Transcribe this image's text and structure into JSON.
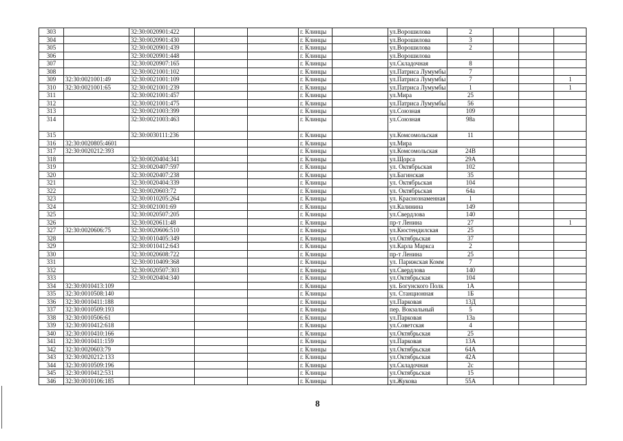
{
  "page_number": "8",
  "rows": [
    {
      "num": "303",
      "cad1": "",
      "cad2": "32:30:0020901:422",
      "city": "г. Клинцы",
      "street": "ул.Ворошилова",
      "house": "2",
      "mark": ""
    },
    {
      "num": "304",
      "cad1": "",
      "cad2": "32:30:0020901:430",
      "city": "г. Клинцы",
      "street": "ул.Ворошилова",
      "house": "3",
      "mark": ""
    },
    {
      "num": "305",
      "cad1": "",
      "cad2": "32:30:0020901:439",
      "city": "г. Клинцы",
      "street": "ул.Ворошилова",
      "house": "2",
      "mark": ""
    },
    {
      "num": "306",
      "cad1": "",
      "cad2": "32:30:0020901:448",
      "city": "г. Клинцы",
      "street": "ул.Ворошилова",
      "house": "",
      "mark": ""
    },
    {
      "num": "307",
      "cad1": "",
      "cad2": "32:30:0020907:165",
      "city": "г. Клинцы",
      "street": "ул.Складочная",
      "house": "8",
      "mark": ""
    },
    {
      "num": "308",
      "cad1": "",
      "cad2": "32:30:0021001:102",
      "city": "г. Клинцы",
      "street": "ул.Патриса Лумумбы",
      "house": "7",
      "mark": ""
    },
    {
      "num": "309",
      "cad1": "32:30:0021001:49",
      "cad2": "32:30:0021001:109",
      "city": "г. Клинцы",
      "street": "ул.Патриса Лумумбы",
      "house": "7",
      "mark": "1"
    },
    {
      "num": "310",
      "cad1": "32:30:0021001:65",
      "cad2": "32:30:0021001:239",
      "city": "г. Клинцы",
      "street": "ул.Патриса Лумумбы",
      "house": "1",
      "mark": "1"
    },
    {
      "num": "311",
      "cad1": "",
      "cad2": "32:30:0021001:457",
      "city": "г. Клинцы",
      "street": "ул.Мира",
      "house": "25",
      "mark": ""
    },
    {
      "num": "312",
      "cad1": "",
      "cad2": "32:30:0021001:475",
      "city": "г. Клинцы",
      "street": "ул.Патриса Лумумбы",
      "house": "56",
      "mark": ""
    },
    {
      "num": "313",
      "cad1": "",
      "cad2": "32:30:0021003:399",
      "city": "г. Клинцы",
      "street": "ул.Союзная",
      "house": "109",
      "mark": ""
    },
    {
      "num": "314",
      "cad1": "",
      "cad2": "32:30:0021003:463",
      "city": "г. Клинцы",
      "street": "ул.Союзная",
      "house": "98а",
      "mark": "",
      "tall": true
    },
    {
      "num": "315",
      "cad1": "",
      "cad2": "32:30:0030111:236",
      "city": "г. Клинцы",
      "street": "ул.Комсомольская",
      "house": "11",
      "mark": ""
    },
    {
      "num": "316",
      "cad1": "32:30:0020805:4601",
      "cad2": "",
      "city": "г. Клинцы",
      "street": "ул.Мира",
      "house": "",
      "mark": ""
    },
    {
      "num": "317",
      "cad1": "32:30:0020212:393",
      "cad2": "",
      "city": "г. Клинцы",
      "street": "ул.Комсомольская",
      "house": "24В",
      "mark": ""
    },
    {
      "num": "318",
      "cad1": "",
      "cad2": "32:30:0020404:341",
      "city": "г. Клинцы",
      "street": "ул.Щорса",
      "house": "29А",
      "mark": ""
    },
    {
      "num": "319",
      "cad1": "",
      "cad2": "32:30:0020407:597",
      "city": "г. Клинцы",
      "street": "ул. Октябрьская",
      "house": "102",
      "mark": ""
    },
    {
      "num": "320",
      "cad1": "",
      "cad2": "32:30:0020407:238",
      "city": "г. Клинцы",
      "street": "ул.Багинская",
      "house": "35",
      "mark": ""
    },
    {
      "num": "321",
      "cad1": "",
      "cad2": "32:30:0020404:339",
      "city": "г. Клинцы",
      "street": "ул. Октябрьская",
      "house": "104",
      "mark": ""
    },
    {
      "num": "322",
      "cad1": "",
      "cad2": "32:30:0020603:72",
      "city": "г. Клинцы",
      "street": "ул. Октябрьская",
      "house": "64а",
      "mark": ""
    },
    {
      "num": "323",
      "cad1": "",
      "cad2": "32:30:0010205:264",
      "city": "г. Клинцы",
      "street": "ул. Краснознаменная",
      "house": "1",
      "mark": ""
    },
    {
      "num": "324",
      "cad1": "",
      "cad2": "32:30:0021001:69",
      "city": "г. Клинцы",
      "street": "ул.Калинина",
      "house": "149",
      "mark": ""
    },
    {
      "num": "325",
      "cad1": "",
      "cad2": "32:30:0020507:205",
      "city": "г. Клинцы",
      "street": "ул.Свердлова",
      "house": "140",
      "mark": ""
    },
    {
      "num": "326",
      "cad1": "",
      "cad2": "32:30:0020611:48",
      "city": "г. Клинцы",
      "street": "пр-т Ленина",
      "house": "27",
      "mark": "1"
    },
    {
      "num": "327",
      "cad1": "32:30:0020606:75",
      "cad2": "32:30:0020606:510",
      "city": "г. Клинцы",
      "street": "ул.Кюстендилская",
      "house": "25",
      "mark": ""
    },
    {
      "num": "328",
      "cad1": "",
      "cad2": "32:30:0010405:349",
      "city": "г. Клинцы",
      "street": "ул.Октябрьская",
      "house": "37",
      "mark": ""
    },
    {
      "num": "329",
      "cad1": "",
      "cad2": "32:30:0010412:643",
      "city": "г. Клинцы",
      "street": "ул.Карла Маркса",
      "house": "2",
      "mark": ""
    },
    {
      "num": "330",
      "cad1": "",
      "cad2": "32:30:0020608:722",
      "city": "г. Клинцы",
      "street": "пр-т Ленина",
      "house": "25",
      "mark": ""
    },
    {
      "num": "331",
      "cad1": "",
      "cad2": "32:30:0010409:368",
      "city": "г. Клинцы",
      "street": "ул. Парижская Комм",
      "house": "7",
      "mark": ""
    },
    {
      "num": "332",
      "cad1": "",
      "cad2": "32:30:0020507:303",
      "city": "г. Клинцы",
      "street": "ул.Свердлова",
      "house": "140",
      "mark": ""
    },
    {
      "num": "333",
      "cad1": "",
      "cad2": "32:30:0020404:340",
      "city": "г. Клинцы",
      "street": "ул.Октябрьская",
      "house": "104",
      "mark": ""
    },
    {
      "num": "334",
      "cad1": "32:30:0010413:109",
      "cad2": "",
      "city": "г. Клинцы",
      "street": "ул. Богунского Полк",
      "house": "1А",
      "mark": ""
    },
    {
      "num": "335",
      "cad1": "32:30:0010508:140",
      "cad2": "",
      "city": "г. Клинцы",
      "street": "ул. Станционная",
      "house": "1Б",
      "mark": ""
    },
    {
      "num": "336",
      "cad1": "32:30:0010411:188",
      "cad2": "",
      "city": "г. Клинцы",
      "street": "ул.Парковая",
      "house": "13Д",
      "mark": ""
    },
    {
      "num": "337",
      "cad1": "32:30:0010509:193",
      "cad2": "",
      "city": "г. Клинцы",
      "street": "пер. Вокзальный",
      "house": "5",
      "mark": ""
    },
    {
      "num": "338",
      "cad1": "32:30:0010506:61",
      "cad2": "",
      "city": "г. Клинцы",
      "street": "ул.Парковая",
      "house": "13а",
      "mark": ""
    },
    {
      "num": "339",
      "cad1": "32:30:0010412:618",
      "cad2": "",
      "city": "г. Клинцы",
      "street": "ул.Советская",
      "house": "4",
      "mark": ""
    },
    {
      "num": "340",
      "cad1": "32:30:0010410:166",
      "cad2": "",
      "city": "г. Клинцы",
      "street": "ул.Октябрьская",
      "house": "25",
      "mark": ""
    },
    {
      "num": "341",
      "cad1": "32:30:0010411:159",
      "cad2": "",
      "city": "г. Клинцы",
      "street": "ул.Парковая",
      "house": "13А",
      "mark": ""
    },
    {
      "num": "342",
      "cad1": "32:30:0020603:79",
      "cad2": "",
      "city": "г. Клинцы",
      "street": "ул.Октябрьская",
      "house": "64А",
      "mark": ""
    },
    {
      "num": "343",
      "cad1": "32:30:0020212:133",
      "cad2": "",
      "city": "г. Клинцы",
      "street": "ул.Октябрьская",
      "house": "42А",
      "mark": ""
    },
    {
      "num": "344",
      "cad1": "32:30:0010509:196",
      "cad2": "",
      "city": "г. Клинцы",
      "street": "ул.Складочная",
      "house": "2с",
      "mark": ""
    },
    {
      "num": "345",
      "cad1": "32:30:0010412:531",
      "cad2": "",
      "city": "г. Клинцы",
      "street": "ул.Октябрьская",
      "house": "15",
      "mark": ""
    },
    {
      "num": "346",
      "cad1": "32:30:0010106:185",
      "cad2": "",
      "city": "г. Клинцы",
      "street": "ул.Жукова",
      "house": "55А",
      "mark": ""
    }
  ]
}
